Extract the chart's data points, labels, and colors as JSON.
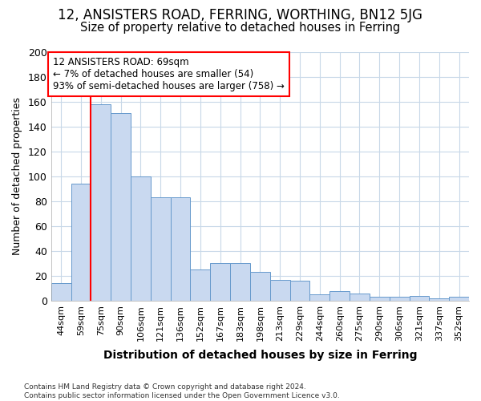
{
  "title1": "12, ANSISTERS ROAD, FERRING, WORTHING, BN12 5JG",
  "title2": "Size of property relative to detached houses in Ferring",
  "xlabel": "Distribution of detached houses by size in Ferring",
  "ylabel": "Number of detached properties",
  "categories": [
    "44sqm",
    "59sqm",
    "75sqm",
    "90sqm",
    "106sqm",
    "121sqm",
    "136sqm",
    "152sqm",
    "167sqm",
    "183sqm",
    "198sqm",
    "213sqm",
    "229sqm",
    "244sqm",
    "260sqm",
    "275sqm",
    "290sqm",
    "306sqm",
    "321sqm",
    "337sqm",
    "352sqm"
  ],
  "values": [
    14,
    94,
    158,
    151,
    100,
    83,
    83,
    25,
    30,
    30,
    23,
    17,
    16,
    5,
    8,
    6,
    3,
    3,
    4,
    2,
    3
  ],
  "bar_color": "#c9d9f0",
  "bar_edge_color": "#6699cc",
  "red_line_x": 1.5,
  "annotation_box_text": "12 ANSISTERS ROAD: 69sqm\n← 7% of detached houses are smaller (54)\n93% of semi-detached houses are larger (758) →",
  "ylim": [
    0,
    200
  ],
  "yticks": [
    0,
    20,
    40,
    60,
    80,
    100,
    120,
    140,
    160,
    180,
    200
  ],
  "footnote": "Contains HM Land Registry data © Crown copyright and database right 2024.\nContains public sector information licensed under the Open Government Licence v3.0.",
  "background_color": "#ffffff",
  "plot_bg_color": "#ffffff",
  "grid_color": "#c8d8e8",
  "title1_fontsize": 12,
  "title2_fontsize": 10.5
}
